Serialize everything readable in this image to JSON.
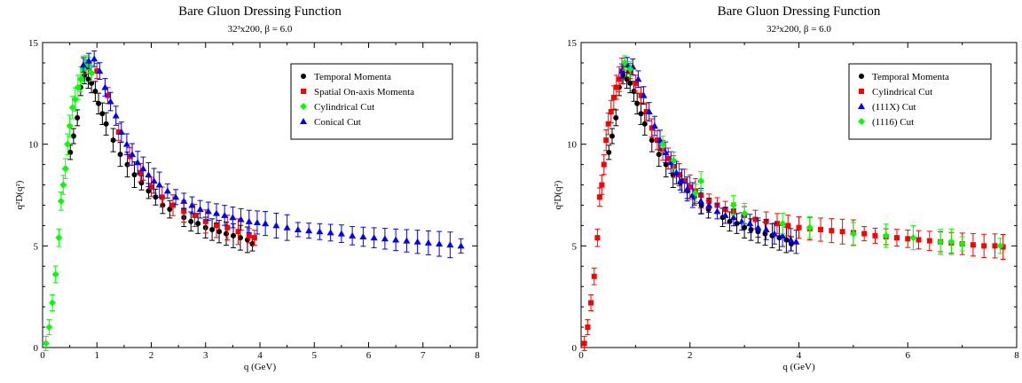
{
  "chart_data": [
    {
      "type": "scatter",
      "title": "Bare Gluon Dressing Function",
      "subtitle": "32³x200,     β = 6.0",
      "xlabel": "q (GeV)",
      "ylabel": "q²D(q²)",
      "xlim": [
        0,
        8
      ],
      "ylim": [
        0,
        15
      ],
      "xticks": [
        "0",
        "1",
        "2",
        "3",
        "4",
        "5",
        "6",
        "7",
        "8"
      ],
      "xtick_values": [
        0,
        1,
        2,
        3,
        4,
        5,
        6,
        7,
        8
      ],
      "yticks": [
        "0",
        "5",
        "10",
        "15"
      ],
      "ytick_values": [
        0,
        5,
        10,
        15
      ],
      "legend_position": "top-right",
      "series": [
        {
          "name": "Temporal Momenta",
          "color": "#000000",
          "marker": "circle",
          "x": [
            0.51,
            0.57,
            0.64,
            0.7,
            0.77,
            0.84,
            0.9,
            0.97,
            1.03,
            1.1,
            1.17,
            1.3,
            1.43,
            1.56,
            1.69,
            1.82,
            1.95,
            2.08,
            2.21,
            2.34,
            2.6,
            2.73,
            2.86,
            3.0,
            3.12,
            3.25,
            3.38,
            3.51,
            3.64,
            3.77,
            3.86
          ],
          "y": [
            9.6,
            10.4,
            11.3,
            12.8,
            13.4,
            13.2,
            13.0,
            12.6,
            12.0,
            11.5,
            11.0,
            10.2,
            9.5,
            9.0,
            8.5,
            8.1,
            7.7,
            7.4,
            7.0,
            6.8,
            6.4,
            6.2,
            6.1,
            5.9,
            5.8,
            5.7,
            5.6,
            5.5,
            5.4,
            5.3,
            5.1
          ]
        },
        {
          "name": "Spatial On-axis Momenta",
          "color": "#ff0000",
          "marker": "square",
          "x": [
            0.8,
            1.0,
            1.2,
            1.4,
            1.6,
            1.8,
            2.0,
            2.2,
            2.4,
            2.6,
            2.8,
            3.0,
            3.2,
            3.4,
            3.6,
            3.8,
            3.9
          ],
          "y": [
            13.8,
            13.6,
            12.4,
            10.6,
            9.4,
            8.6,
            7.9,
            7.4,
            7.0,
            6.7,
            6.5,
            6.2,
            6.0,
            5.9,
            5.7,
            5.5,
            5.4
          ]
        },
        {
          "name": "Cylindrical Cut",
          "color": "#00ff00",
          "marker": "diamond",
          "x": [
            0.06,
            0.12,
            0.18,
            0.24,
            0.3,
            0.34,
            0.38,
            0.42,
            0.46,
            0.5,
            0.55,
            0.6,
            0.65,
            0.7,
            0.75,
            0.8,
            0.85,
            0.9
          ],
          "y": [
            0.2,
            1.0,
            2.2,
            3.6,
            5.4,
            7.2,
            8.0,
            8.8,
            10.0,
            10.9,
            11.8,
            12.2,
            12.8,
            13.2,
            13.7,
            14.0,
            13.9,
            13.5
          ]
        },
        {
          "name": "Conical Cut",
          "color": "#0000ff",
          "marker": "triangle",
          "x": [
            0.75,
            0.85,
            0.95,
            1.05,
            1.15,
            1.25,
            1.35,
            1.45,
            1.55,
            1.65,
            1.75,
            1.85,
            1.95,
            2.05,
            2.15,
            2.3,
            2.45,
            2.6,
            2.75,
            2.9,
            3.05,
            3.2,
            3.35,
            3.5,
            3.65,
            3.8,
            3.95,
            4.1,
            4.3,
            4.5,
            4.7,
            4.9,
            5.1,
            5.3,
            5.5,
            5.7,
            5.9,
            6.1,
            6.3,
            6.5,
            6.7,
            6.9,
            7.1,
            7.3,
            7.5,
            7.7
          ],
          "y": [
            13.9,
            14.1,
            14.2,
            13.6,
            12.8,
            12.1,
            11.4,
            10.6,
            10.0,
            9.5,
            9.1,
            8.8,
            8.5,
            8.2,
            8.0,
            7.7,
            7.4,
            7.2,
            7.0,
            6.8,
            6.7,
            6.6,
            6.5,
            6.4,
            6.3,
            6.2,
            6.15,
            6.1,
            6.0,
            5.9,
            5.8,
            5.75,
            5.7,
            5.65,
            5.6,
            5.5,
            5.45,
            5.4,
            5.35,
            5.3,
            5.25,
            5.2,
            5.15,
            5.1,
            5.05,
            5.0
          ]
        }
      ]
    },
    {
      "type": "scatter",
      "title": "Bare Gluon Dressing Function",
      "subtitle": "32³x200,     β = 6.0",
      "xlabel": "q (GeV)",
      "ylabel": "q²D(q²)",
      "xlim": [
        0,
        8
      ],
      "ylim": [
        0,
        15
      ],
      "xticks": [
        "0",
        "2",
        "4",
        "6",
        "8"
      ],
      "xtick_values": [
        0,
        2,
        4,
        6,
        8
      ],
      "yticks": [
        "0",
        "5",
        "10",
        "15"
      ],
      "ytick_values": [
        0,
        5,
        10,
        15
      ],
      "legend_position": "top-right",
      "series": [
        {
          "name": "Temporal Momenta",
          "color": "#000000",
          "marker": "circle",
          "x": [
            0.51,
            0.57,
            0.64,
            0.7,
            0.77,
            0.84,
            0.9,
            0.97,
            1.03,
            1.1,
            1.17,
            1.3,
            1.43,
            1.56,
            1.69,
            1.82,
            1.95,
            2.08,
            2.21,
            2.34,
            2.6,
            2.73,
            2.86,
            3.0,
            3.12,
            3.25,
            3.38,
            3.51,
            3.64,
            3.77,
            3.86
          ],
          "y": [
            9.6,
            10.4,
            11.3,
            12.8,
            13.4,
            13.2,
            13.0,
            12.6,
            12.0,
            11.5,
            11.0,
            10.2,
            9.5,
            9.0,
            8.5,
            8.1,
            7.7,
            7.4,
            7.0,
            6.8,
            6.4,
            6.2,
            6.1,
            5.9,
            5.8,
            5.7,
            5.6,
            5.5,
            5.4,
            5.3,
            5.1
          ]
        },
        {
          "name": "Cylindrical Cut",
          "color": "#ff0000",
          "marker": "square",
          "x": [
            0.06,
            0.12,
            0.18,
            0.24,
            0.3,
            0.34,
            0.38,
            0.42,
            0.46,
            0.5,
            0.55,
            0.6,
            0.65,
            0.7,
            0.75,
            0.8,
            0.9,
            1.0,
            1.1,
            1.2,
            1.3,
            1.4,
            1.5,
            1.6,
            1.7,
            1.8,
            1.9,
            2.0,
            2.1,
            2.2,
            2.35,
            2.5,
            2.65,
            2.8,
            3.0,
            3.2,
            3.4,
            3.6,
            3.8,
            4.0,
            4.2,
            4.4,
            4.6,
            4.8,
            5.0,
            5.2,
            5.4,
            5.6,
            5.8,
            6.0,
            6.2,
            6.4,
            6.6,
            6.8,
            7.0,
            7.2,
            7.4,
            7.6,
            7.75
          ],
          "y": [
            0.2,
            1.0,
            2.2,
            3.5,
            5.4,
            7.4,
            8.0,
            9.0,
            10.2,
            11.0,
            11.6,
            12.3,
            12.8,
            13.2,
            13.6,
            13.9,
            13.6,
            13.0,
            12.4,
            11.6,
            10.8,
            10.2,
            9.7,
            9.3,
            8.9,
            8.5,
            8.2,
            7.9,
            7.7,
            7.5,
            7.2,
            7.0,
            6.8,
            6.7,
            6.5,
            6.3,
            6.2,
            6.1,
            6.0,
            5.9,
            5.85,
            5.8,
            5.75,
            5.7,
            5.65,
            5.6,
            5.5,
            5.45,
            5.4,
            5.35,
            5.3,
            5.25,
            5.2,
            5.15,
            5.1,
            5.05,
            5.0,
            5.0,
            4.95
          ]
        },
        {
          "name": "(111X) Cut",
          "color": "#0000ff",
          "marker": "triangle",
          "x": [
            0.75,
            0.85,
            0.95,
            1.05,
            1.15,
            1.25,
            1.35,
            1.45,
            1.55,
            1.65,
            1.75,
            1.85,
            1.95,
            2.05,
            2.2,
            2.35,
            2.5,
            2.65,
            2.8,
            2.95,
            3.1,
            3.25,
            3.4,
            3.55,
            3.7,
            3.85,
            3.95
          ],
          "y": [
            13.6,
            13.9,
            13.8,
            13.2,
            12.4,
            11.6,
            10.9,
            10.2,
            9.6,
            9.1,
            8.6,
            8.2,
            7.8,
            7.5,
            7.2,
            7.0,
            6.7,
            6.5,
            6.4,
            6.2,
            6.1,
            5.9,
            5.8,
            5.6,
            5.5,
            5.3,
            5.2
          ]
        },
        {
          "name": "(1116)  Cut",
          "color": "#00ff00",
          "marker": "diamond",
          "x": [
            0.8,
            0.9,
            1.5,
            1.7,
            2.1,
            2.2,
            2.8,
            3.0,
            3.7,
            4.2,
            5.0,
            5.6,
            6.1,
            6.6,
            6.8,
            7.0,
            7.7
          ],
          "y": [
            14.0,
            13.7,
            10.0,
            9.2,
            7.6,
            8.2,
            7.0,
            6.6,
            6.1,
            5.9,
            5.6,
            5.5,
            5.4,
            5.2,
            5.2,
            5.1,
            5.0
          ]
        }
      ]
    }
  ]
}
